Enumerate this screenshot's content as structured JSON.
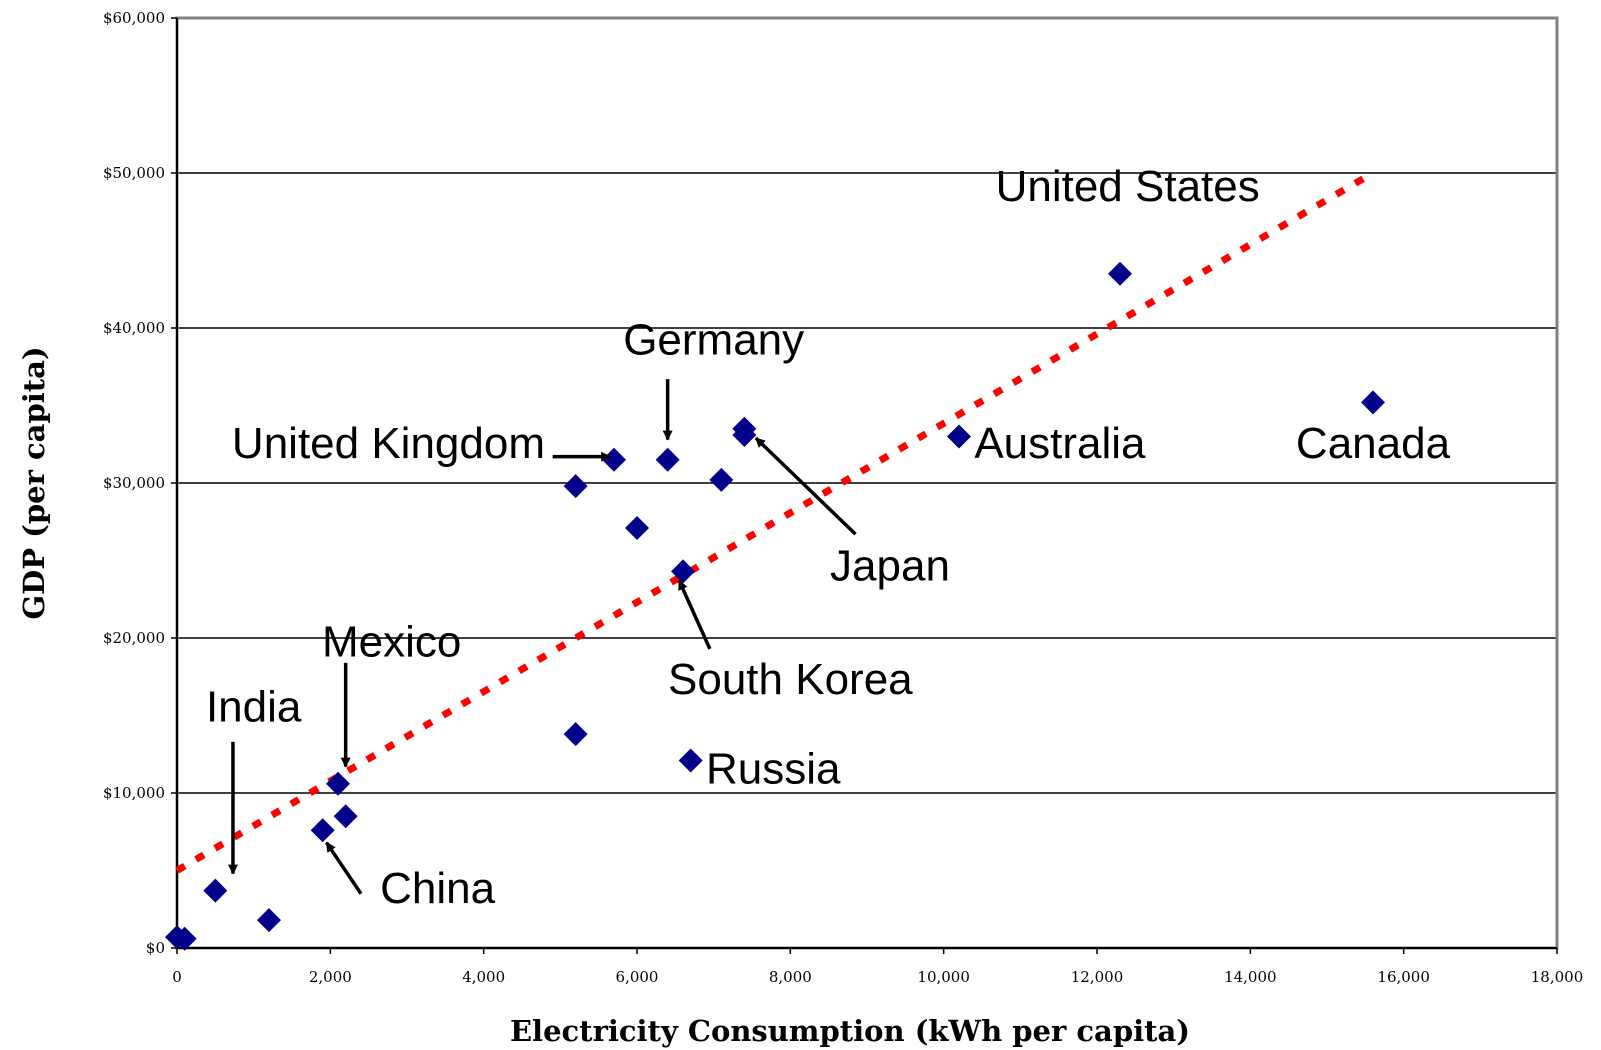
{
  "chart_data": {
    "type": "scatter",
    "xlabel": "Electricity Consumption (kWh per capita)",
    "ylabel": "GDP (per capita)",
    "xlim": [
      0,
      18000
    ],
    "ylim": [
      0,
      60000
    ],
    "x_ticks": [
      0,
      2000,
      4000,
      6000,
      8000,
      10000,
      12000,
      14000,
      16000,
      18000
    ],
    "x_tick_labels": [
      "0",
      "2,000",
      "4,000",
      "6,000",
      "8,000",
      "10,000",
      "12,000",
      "14,000",
      "16,000",
      "18,000"
    ],
    "y_ticks": [
      0,
      10000,
      20000,
      30000,
      40000,
      50000,
      60000
    ],
    "y_tick_labels": [
      "$0",
      "$10,000",
      "$20,000",
      "$30,000",
      "$40,000",
      "$50,000",
      "$60,000"
    ],
    "grid": "horizontal",
    "legend": "none",
    "marker_color": "#00008B",
    "trend_color": "#FF0000",
    "axis_color": "#808080",
    "points": [
      {
        "x": 0,
        "y": 700
      },
      {
        "x": 100,
        "y": 600
      },
      {
        "x": 500,
        "y": 3700
      },
      {
        "x": 1200,
        "y": 1800
      },
      {
        "x": 1900,
        "y": 7600
      },
      {
        "x": 2100,
        "y": 10600
      },
      {
        "x": 2200,
        "y": 8500
      },
      {
        "x": 5200,
        "y": 29800
      },
      {
        "x": 5200,
        "y": 13800
      },
      {
        "x": 5700,
        "y": 31500
      },
      {
        "x": 6000,
        "y": 27100
      },
      {
        "x": 6400,
        "y": 31500
      },
      {
        "x": 6600,
        "y": 24300
      },
      {
        "x": 6700,
        "y": 12100
      },
      {
        "x": 7100,
        "y": 30200
      },
      {
        "x": 7400,
        "y": 33500
      },
      {
        "x": 7400,
        "y": 33100
      },
      {
        "x": 10200,
        "y": 33000
      },
      {
        "x": 12300,
        "y": 43500
      },
      {
        "x": 15600,
        "y": 35200
      }
    ],
    "trendline": {
      "x": [
        0,
        15600
      ],
      "y": [
        5000,
        50000
      ]
    },
    "annotations": [
      {
        "text": "United States",
        "label_at": [
          12400,
          48200
        ],
        "anchor": "middle"
      },
      {
        "text": "Canada",
        "label_at": [
          15600,
          31600
        ],
        "anchor": "middle"
      },
      {
        "text": "Australia",
        "label_at": [
          10400,
          31600
        ],
        "anchor": "start"
      },
      {
        "text": "Germany",
        "label_at": [
          7000,
          38300
        ],
        "anchor": "middle"
      },
      {
        "text": "United Kingdom",
        "label_at": [
          4800,
          31600
        ],
        "anchor": "end",
        "arrow_from": [
          4900,
          31700
        ],
        "arrow_to": [
          5650,
          31700
        ]
      },
      {
        "text": "Japan",
        "label_at": [
          9300,
          23700
        ],
        "anchor": "middle",
        "arrow_from": [
          8850,
          26700
        ],
        "arrow_to": [
          7550,
          32900
        ]
      },
      {
        "text": "South Korea",
        "label_at": [
          8000,
          16400
        ],
        "anchor": "middle",
        "arrow_from": [
          6950,
          19300
        ],
        "arrow_to": [
          6550,
          23700
        ]
      },
      {
        "text": "Russia",
        "label_at": [
          6900,
          10600
        ],
        "anchor": "start"
      },
      {
        "text": "Mexico",
        "label_at": [
          2800,
          18800
        ],
        "anchor": "middle"
      },
      {
        "text": "India",
        "label_at": [
          1000,
          14600
        ],
        "anchor": "middle"
      },
      {
        "text": "China",
        "label_at": [
          2650,
          2900
        ],
        "anchor": "start",
        "arrow_from": [
          2400,
          3500
        ],
        "arrow_to": [
          1950,
          6800
        ]
      }
    ],
    "vertical_arrows": [
      {
        "x": 6400,
        "y_from": 36700,
        "y_to": 32800
      },
      {
        "x": 2200,
        "y_from": 18400,
        "y_to": 11700
      },
      {
        "x": 730,
        "y_from": 13300,
        "y_to": 4800
      }
    ]
  }
}
